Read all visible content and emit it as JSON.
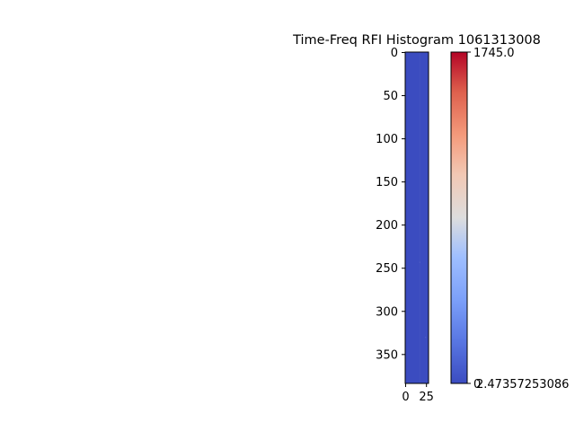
{
  "chart_data": {
    "type": "heatmap",
    "title": "Time-Freq RFI Histogram 1061313008",
    "xlabel": "",
    "ylabel": "",
    "x_ticks": [
      0,
      25
    ],
    "y_ticks": [
      0,
      50,
      100,
      150,
      200,
      250,
      300,
      350
    ],
    "xlim": [
      -0.5,
      27.5
    ],
    "ylim": [
      383.5,
      -0.5
    ],
    "colormap": "coolwarm",
    "color_low": "#3b4cc0",
    "color_mid": "#dddddd",
    "color_high": "#b40426",
    "colorbar": {
      "vmin": 0,
      "vmax": 1745.0,
      "max_label": "1745.0",
      "min_label": "2.47357253086",
      "min_tick_label": "0"
    },
    "cell_values": {
      "background": 0,
      "faint_column": {
        "x": 17,
        "value": 60
      },
      "faint_specks": [
        {
          "x": 17,
          "y": 243,
          "value": 150
        },
        {
          "x": 24,
          "y": 330,
          "value": 150
        }
      ]
    }
  }
}
